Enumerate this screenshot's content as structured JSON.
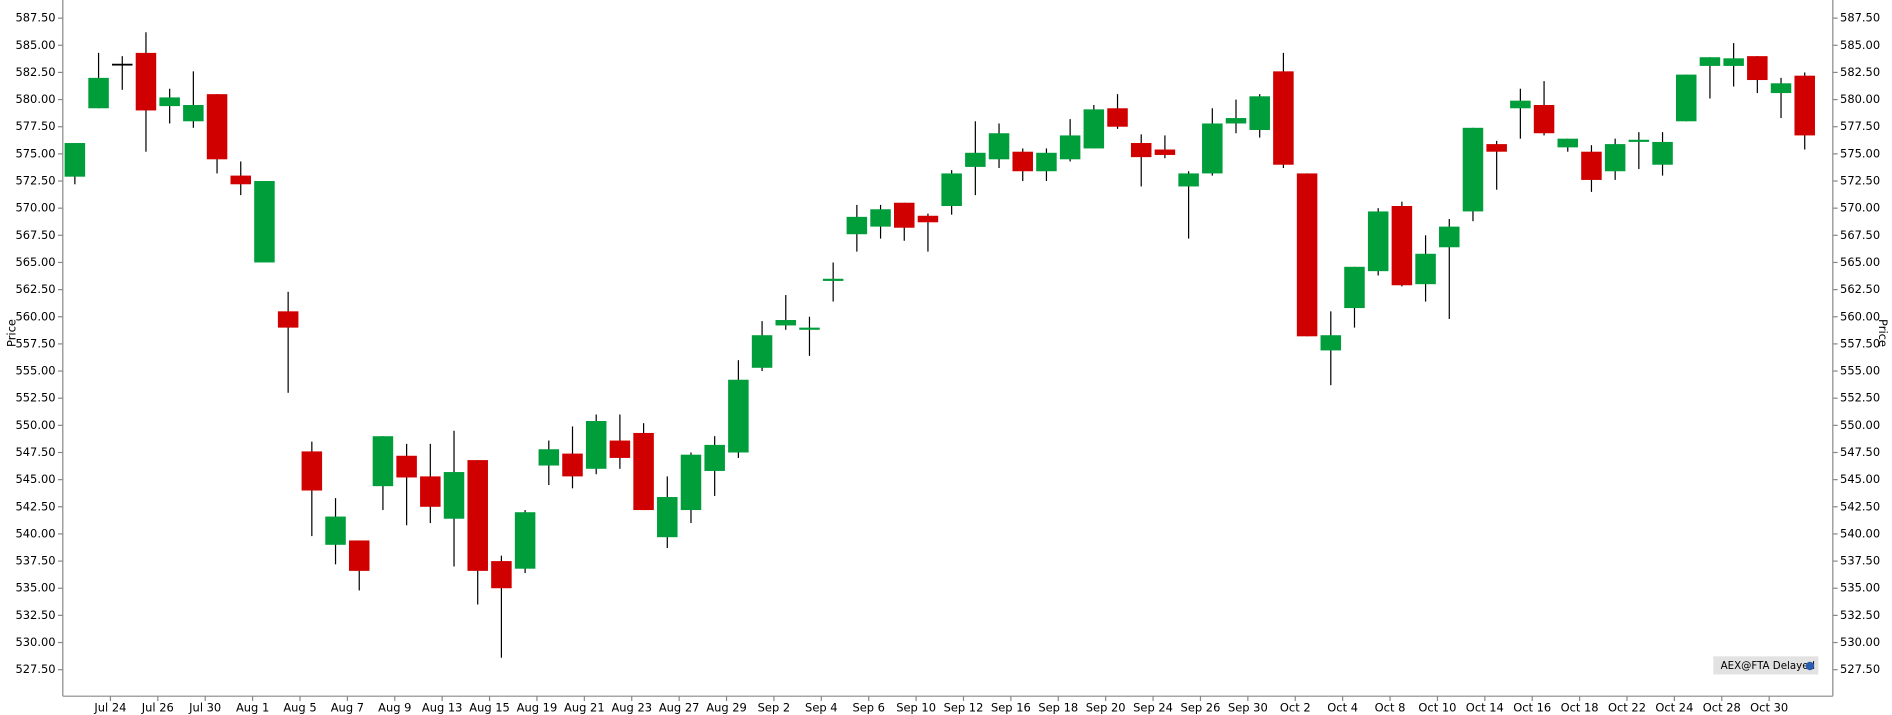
{
  "chart_data": {
    "type": "candlestick",
    "y_label": "Price",
    "watermark": "AEX@FTA Delayed",
    "up_color": "#009e3a",
    "down_color": "#d10000",
    "flat_color": "#000000",
    "ylim": [
      525.06,
      589.17
    ],
    "yticks": [
      {
        "value": 527.5,
        "label": "527.50"
      },
      {
        "value": 530,
        "label": "530.00"
      },
      {
        "value": 532.5,
        "label": "532.50"
      },
      {
        "value": 535,
        "label": "535.00"
      },
      {
        "value": 537.5,
        "label": "537.50"
      },
      {
        "value": 540,
        "label": "540.00"
      },
      {
        "value": 542.5,
        "label": "542.50"
      },
      {
        "value": 545,
        "label": "545.00"
      },
      {
        "value": 547.5,
        "label": "547.50"
      },
      {
        "value": 550,
        "label": "550.00"
      },
      {
        "value": 552.5,
        "label": "552.50"
      },
      {
        "value": 555,
        "label": "555.00"
      },
      {
        "value": 557.5,
        "label": "557.50"
      },
      {
        "value": 560,
        "label": "560.00"
      },
      {
        "value": 562.5,
        "label": "562.50"
      },
      {
        "value": 565,
        "label": "565.00"
      },
      {
        "value": 567.5,
        "label": "567.50"
      },
      {
        "value": 570,
        "label": "570.00"
      },
      {
        "value": 572.5,
        "label": "572.50"
      },
      {
        "value": 575,
        "label": "575.00"
      },
      {
        "value": 577.5,
        "label": "577.50"
      },
      {
        "value": 580,
        "label": "580.00"
      },
      {
        "value": 582.5,
        "label": "582.50"
      },
      {
        "value": 585,
        "label": "585.00"
      },
      {
        "value": 587.5,
        "label": "587.50"
      }
    ],
    "x_tick_labels": [
      "Jul 24",
      "Jul 26",
      "Jul 30",
      "Aug 1",
      "Aug 5",
      "Aug 7",
      "Aug 9",
      "Aug 13",
      "Aug 15",
      "Aug 19",
      "Aug 21",
      "Aug 23",
      "Aug 27",
      "Aug 29",
      "Sep 2",
      "Sep 4",
      "Sep 6",
      "Sep 10",
      "Sep 12",
      "Sep 16",
      "Sep 18",
      "Sep 20",
      "Sep 24",
      "Sep 26",
      "Sep 30",
      "Oct 2",
      "Oct 4",
      "Oct 8",
      "Oct 10",
      "Oct 14",
      "Oct 16",
      "Oct 18",
      "Oct 22",
      "Oct 24",
      "Oct 28",
      "Oct 30"
    ],
    "open": [
      572.9,
      579.2,
      583.3,
      584.3,
      579.4,
      578.0,
      580.5,
      573.0,
      565.0,
      560.5,
      547.6,
      539.0,
      539.4,
      544.4,
      547.2,
      545.3,
      541.4,
      546.8,
      537.5,
      536.8,
      546.3,
      547.4,
      546.0,
      548.6,
      549.3,
      539.7,
      542.2,
      545.8,
      547.5,
      555.3,
      559.2,
      558.8,
      563.3,
      567.6,
      568.3,
      570.5,
      569.3,
      570.2,
      573.8,
      574.5,
      575.2,
      573.4,
      574.5,
      575.5,
      579.2,
      576.0,
      575.4,
      572.0,
      573.2,
      577.8,
      577.2,
      582.6,
      573.2,
      556.9,
      560.8,
      564.2,
      570.2,
      563.0,
      566.4,
      569.7,
      575.9,
      579.2,
      579.5,
      575.6,
      575.2,
      573.4,
      576.1,
      574.0,
      578.0,
      583.1,
      583.1,
      584.0,
      580.6,
      582.2
    ],
    "high": [
      576.0,
      584.3,
      584.0,
      586.2,
      581.0,
      582.6,
      580.5,
      574.3,
      572.5,
      562.3,
      548.5,
      543.3,
      539.4,
      549.0,
      548.3,
      548.3,
      549.5,
      546.8,
      538.0,
      542.2,
      548.6,
      549.9,
      551.0,
      551.0,
      550.2,
      545.3,
      547.5,
      549.0,
      556.0,
      559.6,
      562.0,
      560.0,
      565.0,
      570.3,
      570.3,
      570.5,
      569.5,
      573.5,
      578.0,
      577.8,
      575.5,
      575.5,
      578.2,
      579.5,
      580.5,
      576.8,
      576.7,
      573.4,
      579.2,
      580.0,
      580.5,
      584.3,
      573.2,
      560.5,
      564.6,
      570.0,
      570.6,
      567.5,
      569.0,
      577.4,
      576.2,
      581.0,
      581.7,
      576.4,
      575.8,
      576.4,
      577.0,
      577.0,
      582.3,
      583.9,
      585.2,
      584.0,
      582.0,
      582.5
    ],
    "low": [
      572.2,
      579.2,
      580.9,
      575.2,
      577.8,
      577.4,
      573.2,
      571.2,
      565.0,
      553.0,
      539.8,
      537.2,
      534.8,
      542.2,
      540.8,
      541.0,
      537.0,
      533.5,
      528.6,
      536.4,
      544.5,
      544.2,
      545.5,
      546.0,
      542.2,
      538.7,
      541.0,
      543.5,
      547.0,
      555.0,
      558.8,
      556.4,
      561.4,
      566.0,
      567.2,
      567.0,
      566.0,
      569.4,
      571.2,
      573.7,
      572.5,
      572.5,
      574.3,
      575.5,
      577.3,
      572.0,
      574.6,
      567.2,
      573.0,
      576.9,
      576.5,
      573.7,
      558.2,
      553.7,
      559.0,
      563.8,
      562.8,
      561.4,
      559.8,
      568.8,
      571.7,
      576.4,
      576.7,
      575.2,
      571.5,
      572.6,
      573.6,
      573.0,
      578.0,
      580.1,
      581.2,
      580.6,
      578.3,
      575.4
    ],
    "close": [
      576.0,
      582.0,
      583.3,
      579.0,
      580.2,
      579.5,
      574.5,
      572.2,
      572.5,
      559.0,
      544.0,
      541.6,
      536.6,
      549.0,
      545.2,
      542.5,
      545.7,
      536.6,
      535.0,
      542.0,
      547.8,
      545.3,
      550.4,
      547.0,
      542.2,
      543.4,
      547.3,
      548.2,
      554.2,
      558.3,
      559.7,
      559.0,
      563.5,
      569.2,
      569.9,
      568.2,
      568.7,
      573.2,
      575.1,
      576.9,
      573.4,
      575.1,
      576.7,
      579.1,
      577.5,
      574.7,
      574.9,
      573.2,
      577.8,
      578.3,
      580.3,
      574.0,
      558.2,
      558.3,
      564.6,
      569.7,
      562.9,
      565.8,
      568.3,
      577.4,
      575.2,
      579.9,
      576.9,
      576.4,
      572.6,
      575.9,
      576.3,
      576.1,
      582.3,
      583.9,
      583.8,
      581.8,
      581.5,
      576.7
    ]
  }
}
